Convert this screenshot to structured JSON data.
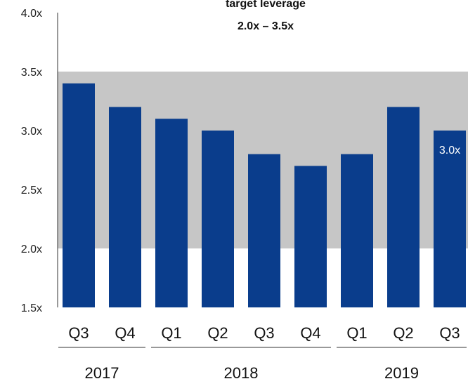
{
  "chart_data": {
    "type": "bar",
    "categories": [
      "Q3",
      "Q4",
      "Q1",
      "Q2",
      "Q3",
      "Q4",
      "Q1",
      "Q2",
      "Q3"
    ],
    "values": [
      3.4,
      3.2,
      3.1,
      3.0,
      2.8,
      2.7,
      2.8,
      3.2,
      3.0
    ],
    "years": [
      {
        "label": "2017",
        "from": 0,
        "to": 1
      },
      {
        "label": "2018",
        "from": 2,
        "to": 5
      },
      {
        "label": "2019",
        "from": 6,
        "to": 8
      }
    ],
    "ylim": [
      1.5,
      4.0
    ],
    "yticks": [
      1.5,
      2.0,
      2.5,
      3.0,
      3.5,
      4.0
    ],
    "ytick_labels": [
      "1.5x",
      "2.0x",
      "2.5x",
      "3.0x",
      "3.5x",
      "4.0x"
    ],
    "target_band": {
      "from": 2.0,
      "to": 3.5,
      "title_line1": "target leverage",
      "title_line2": "2.0x – 3.5x"
    },
    "data_labels": [
      {
        "index": 8,
        "text": "3.0x"
      }
    ],
    "colors": {
      "bar": "#0a3d8c",
      "band": "#c6c6c6",
      "axis": "#333333"
    }
  }
}
